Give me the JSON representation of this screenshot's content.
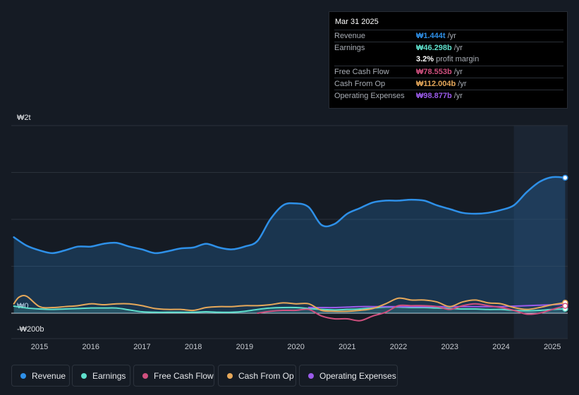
{
  "tooltip": {
    "date": "Mar 31 2025",
    "rows": [
      {
        "label": "Revenue",
        "value": "₩1.444t",
        "unit": "/yr",
        "color": "#2e90e8"
      },
      {
        "label": "Earnings",
        "value": "₩46.298b",
        "unit": "/yr",
        "color": "#5fe0cc"
      },
      {
        "label": "",
        "value": "3.2%",
        "unit": "profit margin",
        "color": "#ffffff"
      },
      {
        "label": "Free Cash Flow",
        "value": "₩78.553b",
        "unit": "/yr",
        "color": "#d0507f"
      },
      {
        "label": "Cash From Op",
        "value": "₩112.004b",
        "unit": "/yr",
        "color": "#e6a85a"
      },
      {
        "label": "Operating Expenses",
        "value": "₩98.877b",
        "unit": "/yr",
        "color": "#9b5bea"
      }
    ]
  },
  "legend": [
    {
      "label": "Revenue",
      "color": "#2e90e8"
    },
    {
      "label": "Earnings",
      "color": "#5fe0cc"
    },
    {
      "label": "Free Cash Flow",
      "color": "#d0507f"
    },
    {
      "label": "Cash From Op",
      "color": "#e6a85a"
    },
    {
      "label": "Operating Expenses",
      "color": "#9b5bea"
    }
  ],
  "chart_data": {
    "type": "area",
    "title": "",
    "xlabel": "",
    "ylabel": "",
    "unit": "KRW",
    "y_tick_labels": [
      "₩2t",
      "₩0",
      "-₩200b"
    ],
    "ylim": [
      -400,
      2000
    ],
    "xlim": [
      2014.45,
      2025.3
    ],
    "x_tick_labels": [
      "2015",
      "2016",
      "2017",
      "2018",
      "2019",
      "2020",
      "2021",
      "2022",
      "2023",
      "2024",
      "2025"
    ],
    "x_ticks": [
      2015,
      2016,
      2017,
      2018,
      2019,
      2020,
      2021,
      2022,
      2023,
      2024,
      2025
    ],
    "highlight_from": 2024.25,
    "series": [
      {
        "name": "Revenue",
        "color": "#2e90e8",
        "fill": true,
        "x": [
          2014.5,
          2014.75,
          2015.0,
          2015.25,
          2015.5,
          2015.75,
          2016.0,
          2016.25,
          2016.5,
          2016.75,
          2017.0,
          2017.25,
          2017.5,
          2017.75,
          2018.0,
          2018.25,
          2018.5,
          2018.75,
          2019.0,
          2019.25,
          2019.5,
          2019.75,
          2020.0,
          2020.25,
          2020.5,
          2020.75,
          2021.0,
          2021.25,
          2021.5,
          2021.75,
          2022.0,
          2022.25,
          2022.5,
          2022.75,
          2023.0,
          2023.25,
          2023.5,
          2023.75,
          2024.0,
          2024.25,
          2024.5,
          2024.75,
          2025.0,
          2025.25
        ],
        "y": [
          810,
          720,
          670,
          640,
          670,
          710,
          710,
          740,
          750,
          710,
          680,
          640,
          660,
          690,
          700,
          740,
          700,
          680,
          710,
          770,
          1000,
          1150,
          1170,
          1130,
          940,
          950,
          1060,
          1120,
          1180,
          1200,
          1200,
          1210,
          1200,
          1150,
          1110,
          1070,
          1060,
          1070,
          1100,
          1150,
          1290,
          1400,
          1450,
          1444
        ]
      },
      {
        "name": "Earnings",
        "color": "#5fe0cc",
        "fill": true,
        "x": [
          2014.5,
          2014.75,
          2015.0,
          2015.25,
          2015.5,
          2015.75,
          2016.0,
          2016.25,
          2016.5,
          2016.75,
          2017.0,
          2017.25,
          2017.5,
          2017.75,
          2018.0,
          2018.25,
          2018.5,
          2018.75,
          2019.0,
          2019.25,
          2019.5,
          2019.75,
          2020.0,
          2020.25,
          2020.5,
          2020.75,
          2021.0,
          2021.25,
          2021.5,
          2021.75,
          2022.0,
          2022.25,
          2022.5,
          2022.75,
          2023.0,
          2023.25,
          2023.5,
          2023.75,
          2024.0,
          2024.25,
          2024.5,
          2024.75,
          2025.0,
          2025.25
        ],
        "y": [
          75,
          55,
          45,
          40,
          45,
          50,
          55,
          55,
          55,
          35,
          15,
          10,
          10,
          10,
          10,
          15,
          10,
          10,
          20,
          40,
          55,
          60,
          60,
          50,
          40,
          35,
          40,
          45,
          55,
          65,
          65,
          60,
          60,
          55,
          50,
          45,
          45,
          40,
          40,
          30,
          25,
          30,
          40,
          46
        ]
      },
      {
        "name": "Free Cash Flow",
        "color": "#d0507f",
        "fill": false,
        "x": [
          2019.25,
          2019.5,
          2019.75,
          2020.0,
          2020.25,
          2020.5,
          2020.75,
          2021.0,
          2021.25,
          2021.5,
          2021.75,
          2022.0,
          2022.25,
          2022.5,
          2022.75,
          2023.0,
          2023.25,
          2023.5,
          2023.75,
          2024.0,
          2024.25,
          2024.5,
          2024.75,
          2025.0,
          2025.25
        ],
        "y": [
          0,
          20,
          30,
          30,
          40,
          -30,
          -60,
          -60,
          -80,
          -30,
          10,
          80,
          80,
          80,
          70,
          40,
          80,
          100,
          80,
          60,
          30,
          -10,
          0,
          40,
          78
        ]
      },
      {
        "name": "Cash From Op",
        "color": "#e6a85a",
        "fill": false,
        "x": [
          2014.5,
          2014.6,
          2014.75,
          2015.0,
          2015.25,
          2015.5,
          2015.75,
          2016.0,
          2016.25,
          2016.5,
          2016.75,
          2017.0,
          2017.25,
          2017.5,
          2017.75,
          2018.0,
          2018.25,
          2018.5,
          2018.75,
          2019.0,
          2019.25,
          2019.5,
          2019.75,
          2020.0,
          2020.25,
          2020.5,
          2020.75,
          2021.0,
          2021.25,
          2021.5,
          2021.75,
          2022.0,
          2022.25,
          2022.5,
          2022.75,
          2023.0,
          2023.25,
          2023.5,
          2023.75,
          2024.0,
          2024.25,
          2024.5,
          2024.75,
          2025.0,
          2025.25
        ],
        "y": [
          100,
          170,
          180,
          70,
          60,
          70,
          80,
          100,
          90,
          100,
          100,
          80,
          50,
          40,
          40,
          30,
          60,
          70,
          70,
          80,
          80,
          90,
          110,
          100,
          100,
          30,
          20,
          20,
          30,
          50,
          100,
          160,
          140,
          140,
          120,
          70,
          120,
          140,
          110,
          100,
          60,
          40,
          60,
          90,
          112
        ]
      },
      {
        "name": "Operating Expenses",
        "color": "#9b5bea",
        "fill": false,
        "x": [
          2020.25,
          2020.5,
          2020.75,
          2021.0,
          2021.25,
          2021.5,
          2021.75,
          2022.0,
          2022.25,
          2022.5,
          2022.75,
          2023.0,
          2023.25,
          2023.5,
          2023.75,
          2024.0,
          2024.25,
          2024.5,
          2024.75,
          2025.0,
          2025.25
        ],
        "y": [
          60,
          60,
          60,
          65,
          70,
          70,
          70,
          70,
          70,
          70,
          70,
          70,
          70,
          70,
          70,
          70,
          75,
          80,
          85,
          90,
          99
        ]
      }
    ]
  }
}
